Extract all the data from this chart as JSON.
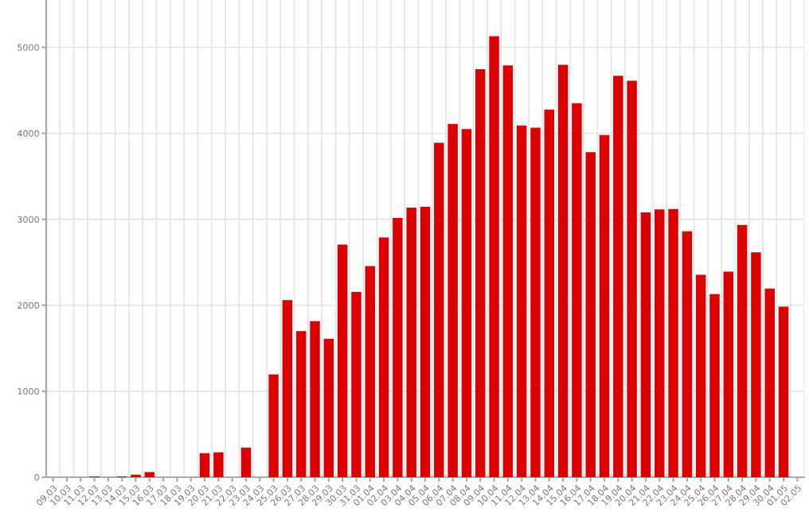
{
  "chart_data": {
    "type": "bar",
    "categories": [
      "09.03",
      "10.03",
      "11.03",
      "12.03",
      "13.03",
      "14.03",
      "15.03",
      "16.03",
      "17.03",
      "18.03",
      "19.03",
      "20.03",
      "21.03",
      "22.03",
      "23.03",
      "24.03",
      "25.03",
      "26.03",
      "27.03",
      "28.03",
      "29.03",
      "30.03",
      "31.03",
      "01.04",
      "02.04",
      "03.04",
      "04.04",
      "05.04",
      "06.04",
      "07.04",
      "08.04",
      "09.04",
      "10.04",
      "11.04",
      "12.04",
      "13.04",
      "14.04",
      "15.04",
      "16.04",
      "17.04",
      "18.04",
      "19.04",
      "20.04",
      "21.04",
      "22.04",
      "23.04",
      "24.04",
      "25.04",
      "26.04",
      "27.04",
      "28.04",
      "29.04",
      "30.04",
      "01.05",
      "02.05"
    ],
    "values": [
      0,
      0,
      0,
      10,
      0,
      10,
      30,
      60,
      0,
      0,
      0,
      280,
      290,
      0,
      345,
      0,
      1195,
      2060,
      1700,
      1815,
      1610,
      2705,
      2155,
      2455,
      2790,
      3015,
      3135,
      3145,
      3890,
      4110,
      4050,
      4745,
      5130,
      4790,
      4090,
      4065,
      4275,
      4795,
      4350,
      3780,
      3980,
      4670,
      4610,
      3080,
      3115,
      3120,
      2860,
      2355,
      2130,
      2390,
      2935,
      2615,
      2195,
      1985,
      null
    ],
    "color": "#dd0000",
    "ylim": [
      0,
      5550
    ],
    "yticks": [
      0,
      1000,
      2000,
      3000,
      4000,
      5000
    ],
    "grid": true
  }
}
